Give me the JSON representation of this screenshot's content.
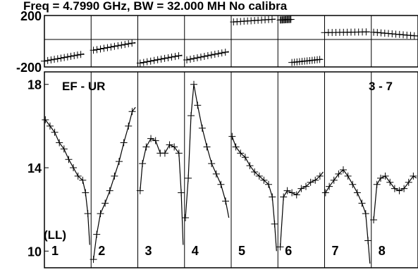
{
  "chart_data": {
    "type": "line",
    "title": "Freq = 4.7990 GHz, BW = 32.000 MH  No calibra",
    "baseline": "EF - UR",
    "bl_range": "3 - 7",
    "pol_label": "(LL)",
    "phase_panel": {
      "ylim": [
        -200,
        200
      ],
      "yticks": [
        -200,
        200
      ],
      "ytick_labels": [
        "-200",
        "200"
      ],
      "series": [
        {
          "x": [
            0.0,
            0.85
          ],
          "y": [
            -155,
            -98
          ]
        },
        {
          "x": [
            0.05,
            0.95
          ],
          "y": [
            -70,
            -10
          ]
        },
        {
          "x": [
            0.05,
            0.95
          ],
          "y": [
            -170,
            -108
          ]
        },
        {
          "x": [
            0.05,
            0.95
          ],
          "y": [
            -145,
            -80
          ]
        },
        {
          "x": [
            0.05,
            0.95
          ],
          "y": [
            150,
            172
          ]
        },
        {
          "x": [
            0.05,
            0.3
          ],
          "y": [
            165,
            170
          ]
        },
        {
          "x": [
            0.3,
            0.95
          ],
          "y": [
            -165,
            -140
          ]
        },
        {
          "x": [
            0.0,
            0.97
          ],
          "y": [
            67,
            73
          ]
        },
        {
          "x": [
            0.05,
            1.0
          ],
          "y": [
            70,
            40
          ]
        }
      ]
    },
    "amp_panel": {
      "ylim": [
        9.2,
        18.6
      ],
      "yticks": [
        10,
        14,
        18
      ],
      "ytick_labels": [
        "10",
        "14",
        "18"
      ],
      "series": [
        {
          "x": [
            0.02,
            0.12,
            0.22,
            0.32,
            0.42,
            0.52,
            0.62,
            0.72,
            0.82,
            0.88,
            0.93,
            0.97
          ],
          "y": [
            16.3,
            16.0,
            15.7,
            15.2,
            14.9,
            14.4,
            14.0,
            13.6,
            13.4,
            12.8,
            11.8,
            10.3
          ]
        },
        {
          "x": [
            0.05,
            0.12,
            0.2,
            0.3,
            0.4,
            0.5,
            0.6,
            0.7,
            0.8,
            0.88,
            0.95
          ],
          "y": [
            9.6,
            10.8,
            11.8,
            12.3,
            12.9,
            13.6,
            14.3,
            15.2,
            16.0,
            16.7,
            16.9
          ]
        },
        {
          "x": [
            0.05,
            0.1,
            0.18,
            0.28,
            0.38,
            0.48,
            0.58,
            0.68,
            0.78,
            0.88,
            0.93,
            0.97
          ],
          "y": [
            12.9,
            14.2,
            15.0,
            15.4,
            15.3,
            14.7,
            14.7,
            15.1,
            15.0,
            14.7,
            12.8,
            10.3
          ]
        },
        {
          "x": [
            0.02,
            0.08,
            0.14,
            0.2,
            0.28,
            0.38,
            0.48,
            0.58,
            0.68,
            0.78,
            0.88,
            0.95
          ],
          "y": [
            11.6,
            13.5,
            16.5,
            18.0,
            17.0,
            15.9,
            15.0,
            14.2,
            13.7,
            13.2,
            12.4,
            11.6
          ]
        },
        {
          "x": [
            0.02,
            0.1,
            0.2,
            0.3,
            0.4,
            0.5,
            0.6,
            0.7,
            0.8,
            0.88,
            0.93,
            0.97
          ],
          "y": [
            15.5,
            15.0,
            14.7,
            14.5,
            14.1,
            13.8,
            13.6,
            13.4,
            13.2,
            12.6,
            11.3,
            10.0
          ]
        },
        {
          "x": [
            0.05,
            0.12,
            0.2,
            0.3,
            0.4,
            0.5,
            0.6,
            0.7,
            0.8,
            0.9,
            0.97
          ],
          "y": [
            10.2,
            12.6,
            12.9,
            12.8,
            12.7,
            13.0,
            13.1,
            13.3,
            13.4,
            13.6,
            13.8
          ]
        },
        {
          "x": [
            0.02,
            0.1,
            0.2,
            0.3,
            0.4,
            0.5,
            0.6,
            0.7,
            0.8,
            0.88,
            0.93,
            0.97
          ],
          "y": [
            12.8,
            13.1,
            13.4,
            13.7,
            13.9,
            13.6,
            13.2,
            12.8,
            12.3,
            11.8,
            10.5,
            9.4
          ]
        },
        {
          "x": [
            0.05,
            0.12,
            0.2,
            0.3,
            0.4,
            0.5,
            0.6,
            0.7,
            0.8,
            0.9,
            0.97
          ],
          "y": [
            11.5,
            13.2,
            13.5,
            13.6,
            13.3,
            13.0,
            12.9,
            13.0,
            13.3,
            13.6,
            13.5
          ]
        }
      ]
    },
    "antennas": [
      "1",
      "2",
      "3",
      "4",
      "5",
      "6",
      "7",
      "8"
    ]
  }
}
